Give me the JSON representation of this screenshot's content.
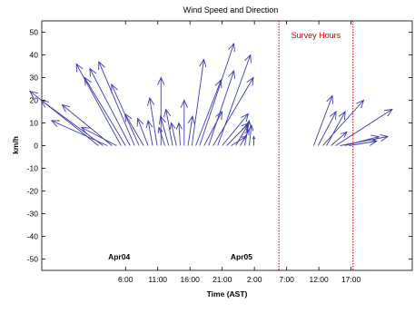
{
  "chart_data": {
    "type": "vector",
    "title": "Wind Speed and Direction",
    "xlabel": "Time (AST)",
    "ylabel": "km/h",
    "ylim": [
      -55,
      55
    ],
    "yticks": [
      -50,
      -40,
      -30,
      -20,
      -10,
      0,
      10,
      20,
      30,
      40,
      50
    ],
    "xlim_hours": [
      0,
      57.5
    ],
    "xticks": [
      {
        "label": "6:00",
        "hour": 13
      },
      {
        "label": "11:00",
        "hour": 18
      },
      {
        "label": "16:00",
        "hour": 23
      },
      {
        "label": "21:00",
        "hour": 28
      },
      {
        "label": "2:00",
        "hour": 33
      },
      {
        "label": "7:00",
        "hour": 38
      },
      {
        "label": "12:00",
        "hour": 43
      },
      {
        "label": "17:00",
        "hour": 48
      }
    ],
    "day_labels": [
      {
        "label": "Apr04",
        "hour": 12
      },
      {
        "label": "Apr05",
        "hour": 31
      }
    ],
    "survey": {
      "label": "Survey Hours",
      "start_hour": 36.8,
      "end_hour": 48.3,
      "color": "#cc0000"
    },
    "vector_color": "#3b3bb0",
    "vectors": [
      {
        "hour": 8.8,
        "u": -9.2,
        "v": 24
      },
      {
        "hour": 9.5,
        "u": -8.3,
        "v": 20
      },
      {
        "hour": 10.2,
        "u": -7.5,
        "v": 11
      },
      {
        "hour": 10.9,
        "u": -6.7,
        "v": 18
      },
      {
        "hour": 11.6,
        "u": -4.7,
        "v": 8
      },
      {
        "hour": 12.3,
        "u": -6.0,
        "v": 36
      },
      {
        "hour": 13.0,
        "u": -5.5,
        "v": 30
      },
      {
        "hour": 13.7,
        "u": -5.4,
        "v": 34
      },
      {
        "hour": 14.4,
        "u": -4.8,
        "v": 37
      },
      {
        "hour": 15.1,
        "u": -3.7,
        "v": 27
      },
      {
        "hour": 15.8,
        "u": -2.5,
        "v": 14
      },
      {
        "hour": 16.5,
        "u": -1.4,
        "v": 12
      },
      {
        "hour": 17.2,
        "u": -0.6,
        "v": 11
      },
      {
        "hour": 17.9,
        "u": -1.0,
        "v": 21
      },
      {
        "hour": 18.5,
        "u": 0.0,
        "v": 30
      },
      {
        "hour": 19.1,
        "u": -0.8,
        "v": 8
      },
      {
        "hour": 19.7,
        "u": -1.1,
        "v": 13
      },
      {
        "hour": 20.3,
        "u": -0.9,
        "v": 16
      },
      {
        "hour": 20.9,
        "u": -0.7,
        "v": 10
      },
      {
        "hour": 21.5,
        "u": -0.2,
        "v": 10
      },
      {
        "hour": 22.1,
        "u": 0.0,
        "v": 20
      },
      {
        "hour": 22.7,
        "u": 0.6,
        "v": 13
      },
      {
        "hour": 23.3,
        "u": 1.6,
        "v": 38
      },
      {
        "hour": 23.9,
        "u": 3.4,
        "v": 29
      },
      {
        "hour": 24.5,
        "u": 4.6,
        "v": 45
      },
      {
        "hour": 25.2,
        "u": 2.4,
        "v": 15
      },
      {
        "hour": 25.9,
        "u": 3.4,
        "v": 33
      },
      {
        "hour": 26.6,
        "u": 5.4,
        "v": 30
      },
      {
        "hour": 27.3,
        "u": 4.4,
        "v": 40
      },
      {
        "hour": 28.0,
        "u": 3.5,
        "v": 14
      },
      {
        "hour": 28.7,
        "u": 3.0,
        "v": 10
      },
      {
        "hour": 29.4,
        "u": 2.0,
        "v": 4
      },
      {
        "hour": 30.1,
        "u": 1.6,
        "v": 9
      },
      {
        "hour": 30.8,
        "u": 1.2,
        "v": 7
      },
      {
        "hour": 31.5,
        "u": 0.6,
        "v": 11
      },
      {
        "hour": 32.2,
        "u": 0.3,
        "v": 9
      },
      {
        "hour": 32.9,
        "u": 0.0,
        "v": 4
      },
      {
        "hour": 42.2,
        "u": 2.5,
        "v": 22
      },
      {
        "hour": 42.9,
        "u": 2.4,
        "v": 15
      },
      {
        "hour": 43.6,
        "u": 5.5,
        "v": 20
      },
      {
        "hour": 44.2,
        "u": 2.5,
        "v": 15
      },
      {
        "hour": 44.9,
        "u": 2.1,
        "v": 6
      },
      {
        "hour": 45.6,
        "u": 7.6,
        "v": 16
      },
      {
        "hour": 46.3,
        "u": 6.4,
        "v": 4
      },
      {
        "hour": 47.0,
        "u": 4.6,
        "v": 4
      },
      {
        "hour": 47.7,
        "u": 3.7,
        "v": 2
      }
    ]
  }
}
